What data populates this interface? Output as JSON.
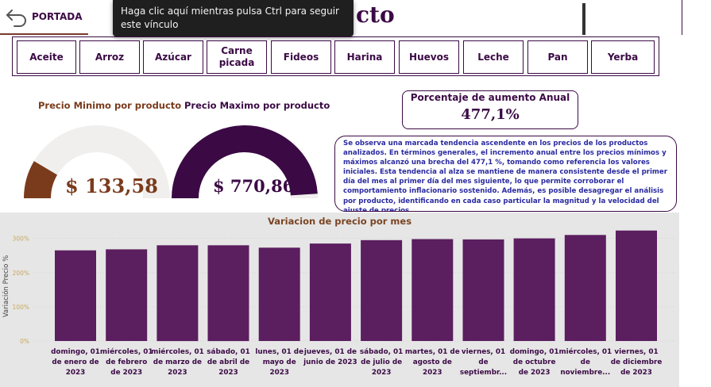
{
  "nav": {
    "back_label": "PORTADA"
  },
  "tooltip": {
    "text": "Haga clic aquí mientras pulsa Ctrl para seguir este vínculo"
  },
  "page": {
    "title_visible": "cto"
  },
  "products": [
    "Aceite",
    "Arroz",
    "Azúcar",
    "Carne picada",
    "Fideos",
    "Harina",
    "Huevos",
    "Leche",
    "Pan",
    "Yerba"
  ],
  "gauges": {
    "min": {
      "title": "Precio Minimo por producto",
      "value": "$ 133,58",
      "fill_fraction": 0.17,
      "color": "#7a3b1c"
    },
    "max": {
      "title": "Precio Maximo por producto",
      "value": "$ 770,86",
      "fill_fraction": 0.98,
      "color": "#3b0a45"
    }
  },
  "kpi": {
    "label": "Porcentaje de aumento Anual",
    "value": "477,1%"
  },
  "note": {
    "text": "Se observa una marcada tendencia ascendente en los precios de los productos analizados. En términos generales, el incremento anual entre los precios mínimos y máximos alcanzó una brecha del 477,1 %, tomando como referencia los valores iniciales. Esta tendencia al alza se mantiene de manera consistente desde el primer día del mes al primer día del mes siguiente, lo que permite corroborar el comportamiento inflacionario sostenido. Además, es posible desagregar el análisis por producto, identificando en cada caso particular la magnitud y la velocidad del ajuste de precios."
  },
  "colors": {
    "accent": "#3b0a45",
    "bar": "#5b1e5f",
    "brown": "#7a3b1c",
    "gauge_track": "#f0efee"
  },
  "chart_data": {
    "type": "bar",
    "title": "Variacion de precio por mes",
    "ylabel": "Variación Precio %",
    "xlabel": "",
    "ylim": [
      0,
      320
    ],
    "yticks": [
      "0%",
      "100%",
      "200%",
      "300%"
    ],
    "categories": [
      [
        "domingo, 01",
        "de enero de",
        "2023"
      ],
      [
        "miércoles, 01",
        "de febrero",
        "de 2023"
      ],
      [
        "miércoles, 01",
        "de marzo de",
        "2023"
      ],
      [
        "sábado, 01",
        "de abril de",
        "2023"
      ],
      [
        "lunes, 01 de",
        "mayo de",
        "2023"
      ],
      [
        "jueves, 01 de",
        "junio de 2023"
      ],
      [
        "sábado, 01",
        "de julio de",
        "2023"
      ],
      [
        "martes, 01 de",
        "agosto de",
        "2023"
      ],
      [
        "viernes, 01",
        "de",
        "septiembr..."
      ],
      [
        "domingo, 01",
        "de octubre",
        "de 2023"
      ],
      [
        "miércoles, 01",
        "de",
        "noviembre..."
      ],
      [
        "viernes, 01",
        "de diciembre",
        "de 2023"
      ]
    ],
    "values": [
      265,
      268,
      280,
      280,
      273,
      285,
      295,
      298,
      297,
      300,
      310,
      323
    ]
  }
}
